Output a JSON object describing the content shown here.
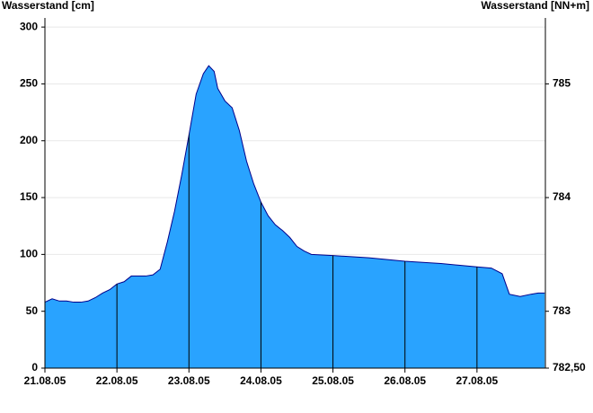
{
  "chart_data": {
    "type": "area",
    "y_label": "Wasserstand [cm]",
    "y2_label": "Wasserstand [NN+m]",
    "x": [
      0,
      0.1,
      0.2,
      0.3,
      0.4,
      0.5,
      0.6,
      0.7,
      0.8,
      0.9,
      1.0,
      1.1,
      1.2,
      1.3,
      1.4,
      1.5,
      1.6,
      1.7,
      1.8,
      1.9,
      2.0,
      2.1,
      2.2,
      2.275,
      2.35,
      2.4,
      2.5,
      2.6,
      2.7,
      2.8,
      2.9,
      3.0,
      3.1,
      3.2,
      3.3,
      3.4,
      3.5,
      3.6,
      3.7,
      4.0,
      4.5,
      5.0,
      5.5,
      6.0,
      6.2,
      6.35,
      6.45,
      6.6,
      6.75,
      6.85,
      6.94
    ],
    "values": [
      58,
      61,
      59,
      59,
      58,
      58,
      59,
      62,
      66,
      69,
      74,
      76,
      81,
      81,
      81,
      82,
      87,
      111,
      138,
      170,
      205,
      241,
      259,
      266,
      261,
      246,
      235,
      229,
      209,
      182,
      162,
      146,
      134,
      126,
      121,
      115,
      107,
      103,
      100,
      99,
      97,
      94,
      92,
      89,
      88,
      83,
      65,
      63,
      65,
      66,
      66
    ],
    "color": "#29a3ff",
    "line_color": "#00008b",
    "xlim": [
      0,
      6.95
    ],
    "xticks": [
      {
        "value": 0,
        "label": "21.08.05"
      },
      {
        "value": 1,
        "label": "22.08.05"
      },
      {
        "value": 2,
        "label": "23.08.05"
      },
      {
        "value": 3,
        "label": "24.08.05"
      },
      {
        "value": 4,
        "label": "25.08.05"
      },
      {
        "value": 5,
        "label": "26.08.05"
      },
      {
        "value": 6,
        "label": "27.08.05"
      }
    ],
    "ylim": [
      0,
      308
    ],
    "yticks": [
      0,
      50,
      100,
      150,
      200,
      250,
      300
    ],
    "y2lim": [
      782.5,
      785.58
    ],
    "y2ticks": [
      {
        "value": 782.5,
        "label": "782,50"
      },
      783,
      784,
      785
    ],
    "grid": true
  }
}
